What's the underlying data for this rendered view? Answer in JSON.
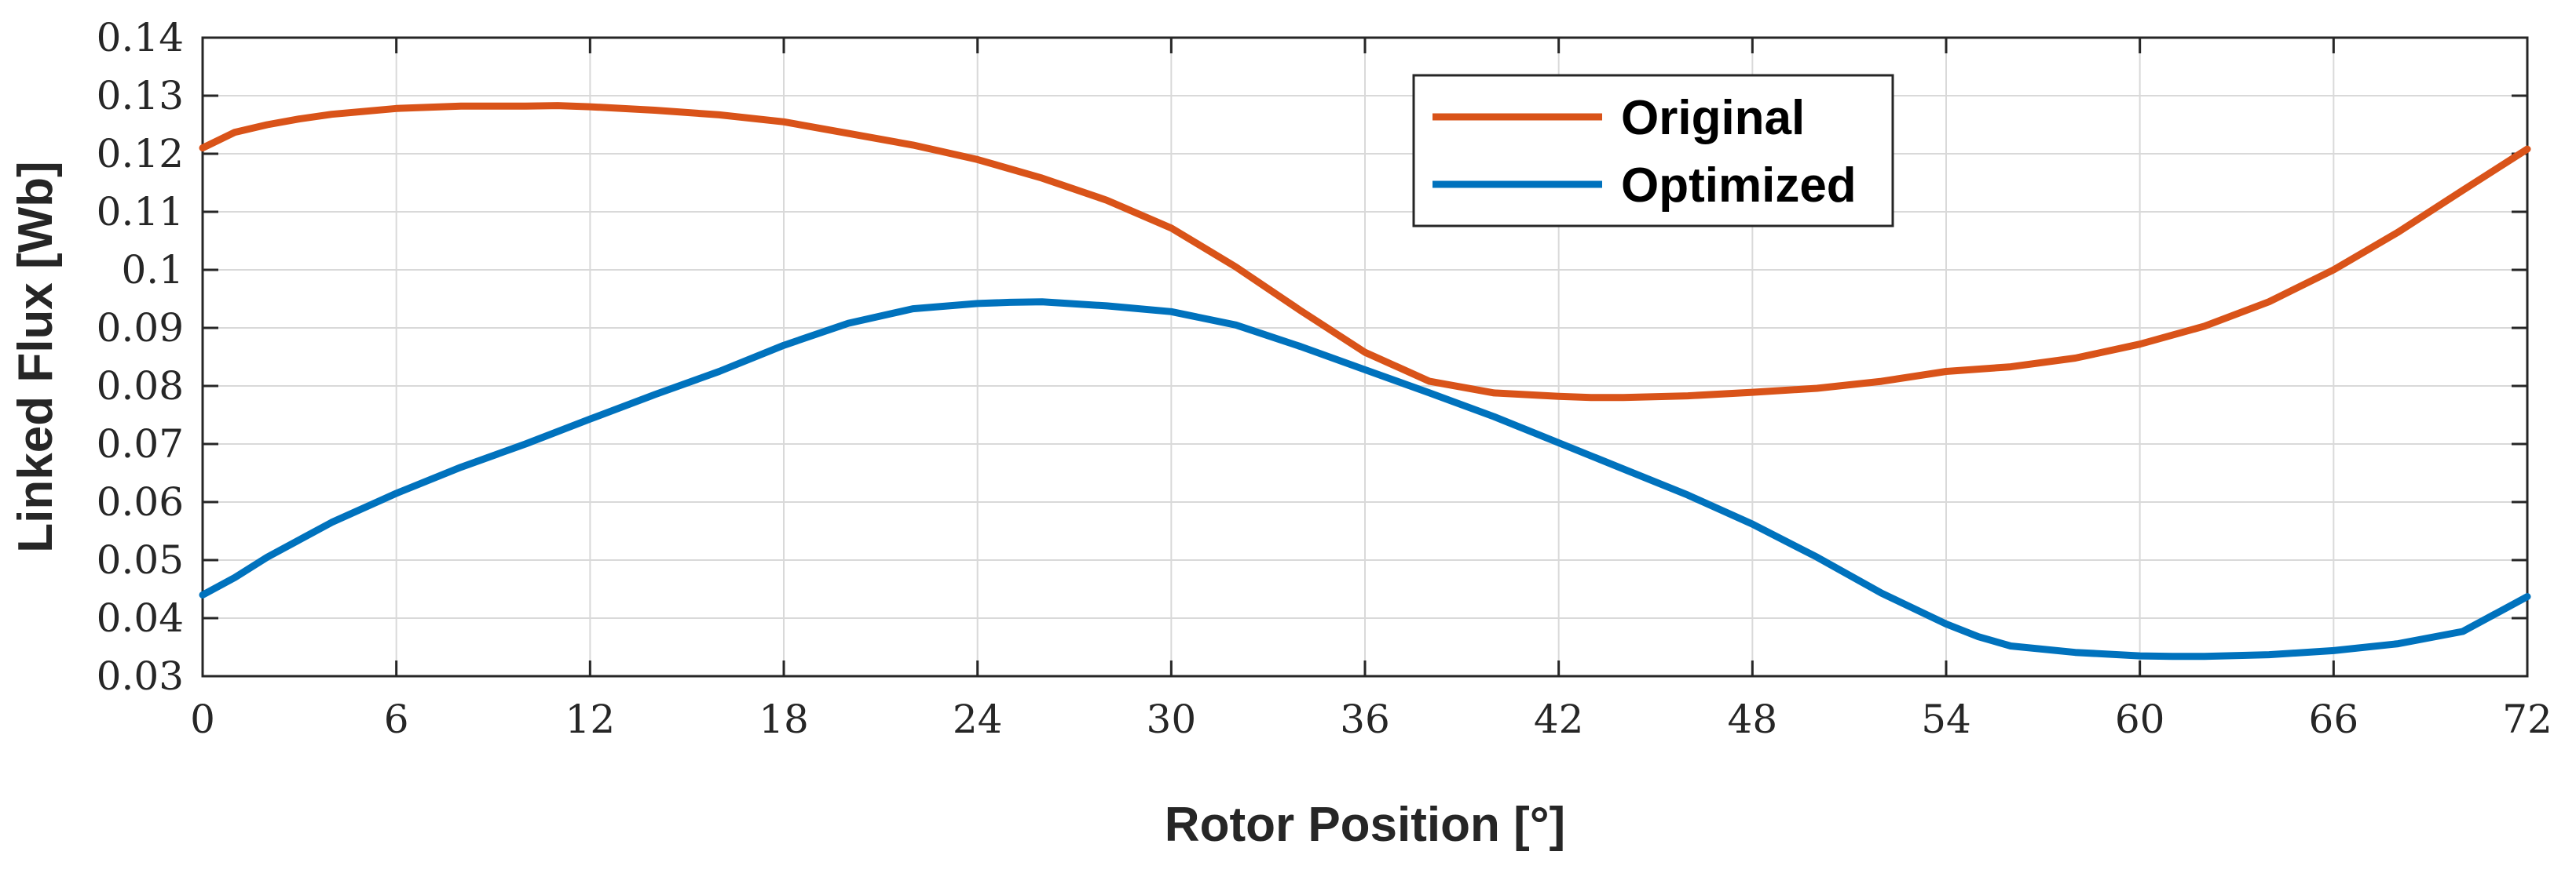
{
  "chart_data": {
    "type": "line",
    "title": "",
    "xlabel": "Rotor Position [°]",
    "ylabel": "Linked Flux [Wb]",
    "xlim": [
      0,
      72
    ],
    "ylim": [
      0.03,
      0.14
    ],
    "xticks": [
      0,
      6,
      12,
      18,
      24,
      30,
      36,
      42,
      48,
      54,
      60,
      66,
      72
    ],
    "yticks": [
      0.03,
      0.04,
      0.05,
      0.06,
      0.07,
      0.08,
      0.09,
      0.1,
      0.11,
      0.12,
      0.13,
      0.14
    ],
    "xtick_labels": [
      "0",
      "6",
      "12",
      "18",
      "24",
      "30",
      "36",
      "42",
      "48",
      "54",
      "60",
      "66",
      "72"
    ],
    "ytick_labels": [
      "0.03",
      "0.04",
      "0.05",
      "0.06",
      "0.07",
      "0.08",
      "0.09",
      "0.1",
      "0.11",
      "0.12",
      "0.13",
      "0.14"
    ],
    "grid": true,
    "legend_position": "top-center",
    "series": [
      {
        "name": "Original",
        "color": "#D95319",
        "x": [
          0,
          1,
          2,
          3,
          4,
          6,
          8,
          10,
          11,
          12,
          14,
          16,
          18,
          20,
          22,
          24,
          26,
          28,
          30,
          32,
          34,
          36,
          38,
          40,
          42,
          43,
          44,
          46,
          48,
          50,
          52,
          54,
          56,
          58,
          60,
          62,
          64,
          66,
          68,
          70,
          72
        ],
        "values": [
          0.121,
          0.1237,
          0.125,
          0.126,
          0.1268,
          0.1278,
          0.1282,
          0.1282,
          0.1283,
          0.1281,
          0.1275,
          0.1267,
          0.1255,
          0.1235,
          0.1215,
          0.119,
          0.1158,
          0.112,
          0.1072,
          0.1005,
          0.093,
          0.0858,
          0.0808,
          0.0788,
          0.0782,
          0.078,
          0.078,
          0.0783,
          0.0789,
          0.0796,
          0.0808,
          0.0825,
          0.0833,
          0.0848,
          0.0872,
          0.0903,
          0.0945,
          0.1,
          0.1065,
          0.1137,
          0.1208
        ]
      },
      {
        "name": "Optimized",
        "color": "#0072BD",
        "x": [
          0,
          1,
          2,
          4,
          6,
          8,
          10,
          12,
          14,
          16,
          18,
          20,
          22,
          24,
          25,
          26,
          28,
          30,
          32,
          34,
          36,
          38,
          40,
          42,
          44,
          46,
          48,
          50,
          52,
          54,
          55,
          56,
          58,
          60,
          61,
          62,
          64,
          66,
          68,
          70,
          72
        ],
        "values": [
          0.044,
          0.047,
          0.0505,
          0.0565,
          0.0615,
          0.066,
          0.07,
          0.0743,
          0.0785,
          0.0825,
          0.087,
          0.0908,
          0.0933,
          0.0942,
          0.0944,
          0.0945,
          0.0938,
          0.0928,
          0.0905,
          0.0868,
          0.0828,
          0.0788,
          0.0747,
          0.0702,
          0.0657,
          0.0612,
          0.0562,
          0.0505,
          0.0443,
          0.039,
          0.0368,
          0.0352,
          0.0341,
          0.0335,
          0.0334,
          0.0334,
          0.0337,
          0.0344,
          0.0356,
          0.0377,
          0.0437
        ]
      }
    ]
  }
}
